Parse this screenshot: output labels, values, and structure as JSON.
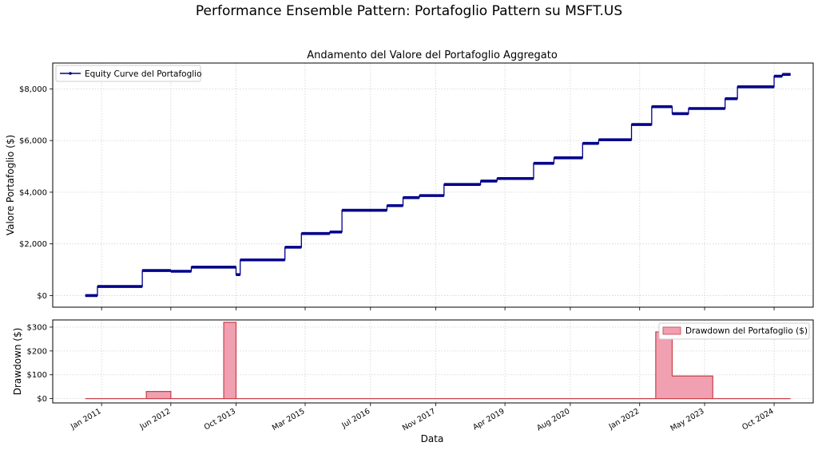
{
  "figure": {
    "suptitle": "Performance Ensemble Pattern: Portafoglio Pattern su MSFT.US",
    "xlabel": "Data"
  },
  "chart_data": [
    {
      "type": "line",
      "title": "Andamento del Valore del Portafoglio Aggregato",
      "xlabel": "",
      "ylabel": "Valore Portafoglio ($)",
      "ylim": [
        -450,
        9000
      ],
      "xlim": [
        "2010-01-01",
        "2025-07-20"
      ],
      "legend_position": "upper left",
      "grid": true,
      "yticks": [
        0,
        2000,
        4000,
        6000,
        8000
      ],
      "ytick_labels": [
        "$0",
        "$2,000",
        "$4,000",
        "$6,000",
        "$8,000"
      ],
      "series": [
        {
          "name": "Equity Curve del Portafoglio",
          "color": "#00008b",
          "step": "post",
          "x": [
            "2010-09-01",
            "2010-12-01",
            "2011-11-01",
            "2012-06-01",
            "2012-11-01",
            "2013-10-01",
            "2013-11-01",
            "2014-10-01",
            "2015-02-01",
            "2015-09-01",
            "2015-12-01",
            "2016-11-01",
            "2017-03-01",
            "2017-07-01",
            "2018-01-01",
            "2018-10-01",
            "2019-02-01",
            "2019-11-01",
            "2020-04-01",
            "2020-11-01",
            "2021-03-01",
            "2021-11-01",
            "2022-04-01",
            "2022-09-01",
            "2023-01-01",
            "2023-10-01",
            "2024-01-01",
            "2024-10-01",
            "2024-12-01",
            "2025-02-01"
          ],
          "values": [
            0,
            350,
            970,
            940,
            1100,
            810,
            1380,
            1870,
            2400,
            2460,
            3300,
            3480,
            3790,
            3870,
            4300,
            4430,
            4530,
            5120,
            5330,
            5890,
            6030,
            6620,
            7310,
            7040,
            7240,
            7620,
            8080,
            8490,
            8560,
            8560
          ]
        }
      ]
    },
    {
      "type": "area",
      "title": "",
      "xlabel": "Data",
      "ylabel": "Drawdown ($)",
      "ylim": [
        -18,
        330
      ],
      "xlim": [
        "2010-01-01",
        "2025-07-20"
      ],
      "legend_position": "upper right",
      "grid": true,
      "yticks": [
        0,
        100,
        200,
        300
      ],
      "ytick_labels": [
        "$0",
        "$100",
        "$200",
        "$300"
      ],
      "xticks": [
        "2011-01-01",
        "2012-06-01",
        "2013-10-01",
        "2015-03-01",
        "2016-07-01",
        "2017-11-01",
        "2019-04-01",
        "2020-08-01",
        "2022-01-01",
        "2023-05-01",
        "2024-10-01"
      ],
      "xtick_labels": [
        "Jan 2011",
        "Jun 2012",
        "Oct 2013",
        "Mar 2015",
        "Jul 2016",
        "Nov 2017",
        "Apr 2019",
        "Aug 2020",
        "Jan 2022",
        "May 2023",
        "Oct 2024"
      ],
      "series": [
        {
          "name": "Drawdown del Portafoglio ($)",
          "fill": "#f0a0b0",
          "edge": "#c8404a",
          "step": "post",
          "x": [
            "2010-09-01",
            "2011-12-01",
            "2012-06-01",
            "2013-07-01",
            "2013-10-01",
            "2022-05-01",
            "2022-09-01",
            "2023-07-01",
            "2025-02-01"
          ],
          "values": [
            0,
            30,
            0,
            320,
            0,
            280,
            95,
            0,
            0
          ]
        }
      ]
    }
  ]
}
